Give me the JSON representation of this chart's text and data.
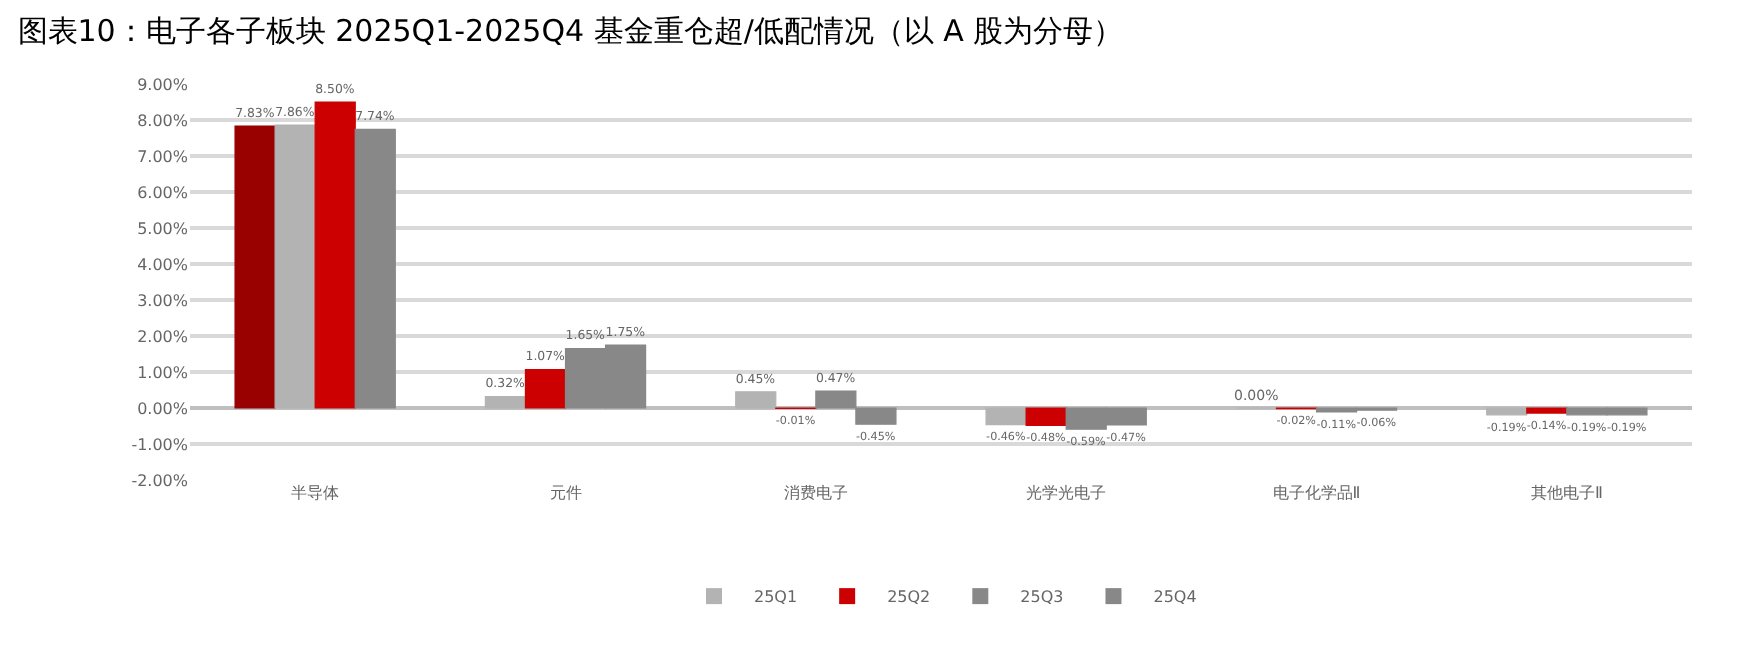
{
  "chart_data": {
    "type": "bar",
    "title": "图表10：电子各子板块 2025Q1-2025Q4 基金重仓超/低配情况（以 A 股为分母）",
    "categories": [
      "半导体",
      "元件",
      "消费电子",
      "光学光电子",
      "电子化学品Ⅱ",
      "其他电子Ⅱ"
    ],
    "series": [
      {
        "name": "25Q1",
        "color": "#b3b3b3",
        "colors": [
          "#990000",
          "#b3b3b3",
          "#b3b3b3",
          "#b3b3b3",
          "#b3b3b3",
          "#b3b3b3"
        ],
        "values": [
          7.83,
          0.32,
          0.45,
          -0.46,
          0.0,
          -0.19
        ],
        "value_labels": [
          "7.83%",
          "0.32%",
          "0.45%",
          "-0.46%",
          "0.00%",
          "-0.19%"
        ]
      },
      {
        "name": "25Q2",
        "color": "#cc0000",
        "colors": [
          "#b3b3b3",
          "#cc0000",
          "#cc0000",
          "#cc0000",
          "#cc0000",
          "#cc0000"
        ],
        "values": [
          7.86,
          1.07,
          -0.01,
          -0.48,
          -0.02,
          -0.14
        ],
        "value_labels": [
          "7.86%",
          "1.07%",
          "-0.01%",
          "-0.48%",
          "-0.02%",
          "-0.14%"
        ]
      },
      {
        "name": "25Q3",
        "color": "#888888",
        "colors": [
          "#cc0000",
          "#888888",
          "#888888",
          "#888888",
          "#888888",
          "#888888"
        ],
        "values": [
          8.5,
          1.65,
          0.47,
          -0.59,
          -0.11,
          -0.19
        ],
        "value_labels": [
          "8.50%",
          "1.65%",
          "0.47%",
          "-0.59%",
          "-0.11%",
          "-0.19%"
        ]
      },
      {
        "name": "25Q4",
        "color": "#888888",
        "values": [
          7.74,
          1.75,
          -0.45,
          -0.47,
          -0.06,
          -0.19
        ],
        "value_labels": [
          "7.74%",
          "1.75%",
          "-0.45%",
          "-0.47%",
          "-0.06%",
          "-0.19%"
        ]
      }
    ],
    "ylim": [
      -2,
      9
    ],
    "yticks": [
      {
        "value": -2,
        "label": "-2.00%"
      },
      {
        "value": -1,
        "label": "-1.00%"
      },
      {
        "value": 0,
        "label": "0.00%"
      },
      {
        "value": 1,
        "label": "1.00%"
      },
      {
        "value": 2,
        "label": "2.00%"
      },
      {
        "value": 3,
        "label": "3.00%"
      },
      {
        "value": 4,
        "label": "4.00%"
      },
      {
        "value": 5,
        "label": "5.00%"
      },
      {
        "value": 6,
        "label": "6.00%"
      },
      {
        "value": 7,
        "label": "7.00%"
      },
      {
        "value": 8,
        "label": "8.00%"
      },
      {
        "value": 9,
        "label": "9.00%"
      }
    ],
    "grid": "y",
    "legend": "bottom"
  }
}
